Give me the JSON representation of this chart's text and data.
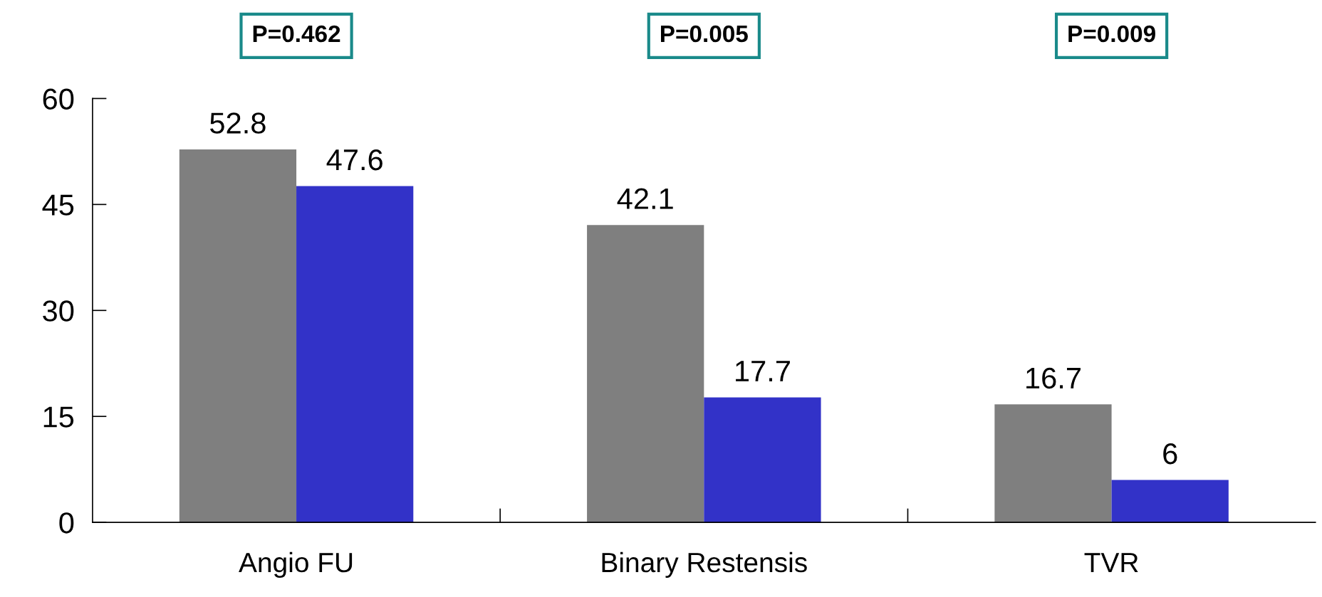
{
  "chart_data": {
    "type": "bar",
    "categories": [
      "Angio FU",
      "Binary Restensis",
      "TVR"
    ],
    "series": [
      {
        "color": "#7f7f7f",
        "values": [
          52.8,
          42.1,
          16.7
        ]
      },
      {
        "color": "#3232c8",
        "values": [
          47.6,
          17.7,
          6
        ]
      }
    ],
    "ylim": [
      0,
      60
    ],
    "yticks": [
      0,
      15,
      30,
      45,
      60
    ],
    "data_labels": true,
    "grid": false,
    "legend": false,
    "annotations": [
      "P=0.462",
      "P=0.005",
      "P=0.009"
    ]
  }
}
